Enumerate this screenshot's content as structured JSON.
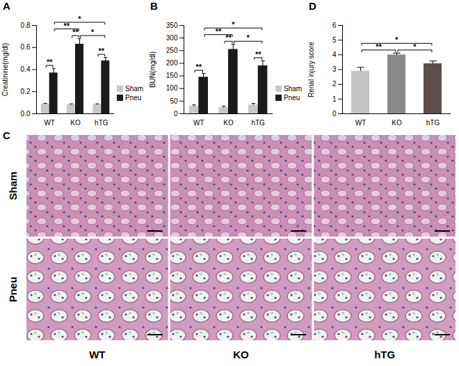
{
  "chart_data": [
    {
      "type": "bar",
      "title": "A",
      "categories": [
        "WT",
        "KO",
        "hTG"
      ],
      "y_label": "Creatinine(mg/dl)",
      "ylim": [
        0,
        0.8
      ],
      "yticks": [
        {
          "value": 0,
          "label": "0.0"
        },
        {
          "value": 0.2,
          "label": "0.2"
        },
        {
          "value": 0.4,
          "label": "0.4"
        },
        {
          "value": 0.6,
          "label": "0.6"
        },
        {
          "value": 0.8,
          "label": "0.8"
        }
      ],
      "legend": "right",
      "series": [
        {
          "name": "Sham",
          "color": "#c8c8c8",
          "values": [
            0.09,
            0.085,
            0.085
          ],
          "errors": [
            0.005,
            0.005,
            0.005
          ]
        },
        {
          "name": "Pneu",
          "color": "#1a1a1a",
          "values": [
            0.37,
            0.63,
            0.48
          ],
          "errors": [
            0.04,
            0.05,
            0.03
          ]
        }
      ],
      "annotations": [
        {
          "text": "**",
          "from": {
            "category": "WT",
            "series": "Sham"
          },
          "to": {
            "category": "WT",
            "series": "Pneu"
          }
        },
        {
          "text": "**",
          "from": {
            "category": "KO",
            "series": "Sham"
          },
          "to": {
            "category": "KO",
            "series": "Pneu"
          }
        },
        {
          "text": "**",
          "from": {
            "category": "hTG",
            "series": "Sham"
          },
          "to": {
            "category": "hTG",
            "series": "Pneu"
          }
        },
        {
          "text": "**",
          "from": {
            "category": "WT",
            "series": "Pneu"
          },
          "to": {
            "category": "KO",
            "series": "Pneu"
          }
        },
        {
          "text": "*",
          "from": {
            "category": "KO",
            "series": "Pneu"
          },
          "to": {
            "category": "hTG",
            "series": "Pneu"
          }
        },
        {
          "text": "*",
          "from": {
            "category": "WT",
            "series": "Pneu"
          },
          "to": {
            "category": "hTG",
            "series": "Pneu"
          }
        }
      ]
    },
    {
      "type": "bar",
      "title": "B",
      "categories": [
        "WT",
        "KO",
        "hTG"
      ],
      "y_label": "BUN(mg/dl)",
      "ylim": [
        0,
        350
      ],
      "yticks": [
        0,
        50,
        100,
        150,
        200,
        250,
        300,
        350
      ],
      "legend": "right",
      "series": [
        {
          "name": "Sham",
          "color": "#c8c8c8",
          "values": [
            30,
            25,
            35
          ],
          "errors": [
            5,
            5,
            6
          ]
        },
        {
          "name": "Pneu",
          "color": "#1a1a1a",
          "values": [
            145,
            255,
            190
          ],
          "errors": [
            15,
            20,
            20
          ]
        }
      ],
      "annotations": [
        {
          "text": "**",
          "from": {
            "category": "WT",
            "series": "Sham"
          },
          "to": {
            "category": "WT",
            "series": "Pneu"
          }
        },
        {
          "text": "**",
          "from": {
            "category": "KO",
            "series": "Sham"
          },
          "to": {
            "category": "KO",
            "series": "Pneu"
          }
        },
        {
          "text": "**",
          "from": {
            "category": "hTG",
            "series": "Sham"
          },
          "to": {
            "category": "hTG",
            "series": "Pneu"
          }
        },
        {
          "text": "**",
          "from": {
            "category": "WT",
            "series": "Pneu"
          },
          "to": {
            "category": "KO",
            "series": "Pneu"
          }
        },
        {
          "text": "*",
          "from": {
            "category": "KO",
            "series": "Pneu"
          },
          "to": {
            "category": "hTG",
            "series": "Pneu"
          }
        },
        {
          "text": "*",
          "from": {
            "category": "WT",
            "series": "Pneu"
          },
          "to": {
            "category": "hTG",
            "series": "Pneu"
          }
        }
      ]
    },
    {
      "type": "bar",
      "title": "D",
      "categories": [
        "WT",
        "KO",
        "hTG"
      ],
      "y_label": "Renal injury score",
      "ylim": [
        0,
        6
      ],
      "yticks": [
        0,
        1,
        2,
        3,
        4,
        5,
        6
      ],
      "values": [
        2.9,
        4.0,
        3.4
      ],
      "errors": [
        0.25,
        0.12,
        0.18
      ],
      "colors": [
        "#c4c4c4",
        "#8a8a8a",
        "#5e4e4e"
      ],
      "annotations": [
        {
          "text": "**",
          "from": {
            "category": "WT"
          },
          "to": {
            "category": "KO"
          }
        },
        {
          "text": "*",
          "from": {
            "category": "KO"
          },
          "to": {
            "category": "hTG"
          }
        },
        {
          "text": "*",
          "from": {
            "category": "WT"
          },
          "to": {
            "category": "hTG"
          }
        }
      ]
    }
  ],
  "image_panel": {
    "title": "C",
    "rows": [
      "Sham",
      "Pneu"
    ],
    "columns": [
      "WT",
      "KO",
      "hTG"
    ]
  }
}
